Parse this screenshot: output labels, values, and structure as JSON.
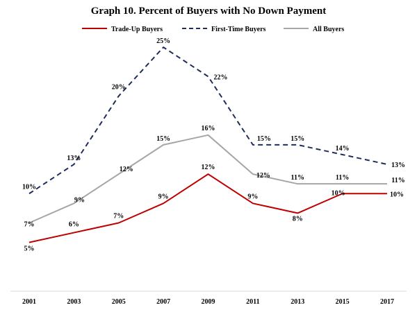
{
  "chart_data": {
    "type": "line",
    "title": "Graph 10. Percent of Buyers with No Down Payment",
    "xlabel": "",
    "ylabel": "",
    "categories": [
      "2001",
      "2003",
      "2005",
      "2007",
      "2009",
      "2011",
      "2013",
      "2015",
      "2017"
    ],
    "ylim": [
      0,
      27
    ],
    "grid": false,
    "legend_position": "top",
    "series": [
      {
        "name": "Trade-Up Buyers",
        "color": "#c00000",
        "style": "solid",
        "values": [
          5,
          6,
          7,
          9,
          12,
          9,
          8,
          10,
          10
        ]
      },
      {
        "name": "First-Time Buyers",
        "color": "#1f2d5a",
        "style": "dashed",
        "values": [
          10,
          13,
          20,
          25,
          22,
          15,
          15,
          14,
          13
        ]
      },
      {
        "name": "All Buyers",
        "color": "#a6a6a6",
        "style": "solid",
        "values": [
          7,
          9,
          12,
          15,
          16,
          12,
          11,
          11,
          11
        ]
      }
    ],
    "value_suffix": "%"
  }
}
